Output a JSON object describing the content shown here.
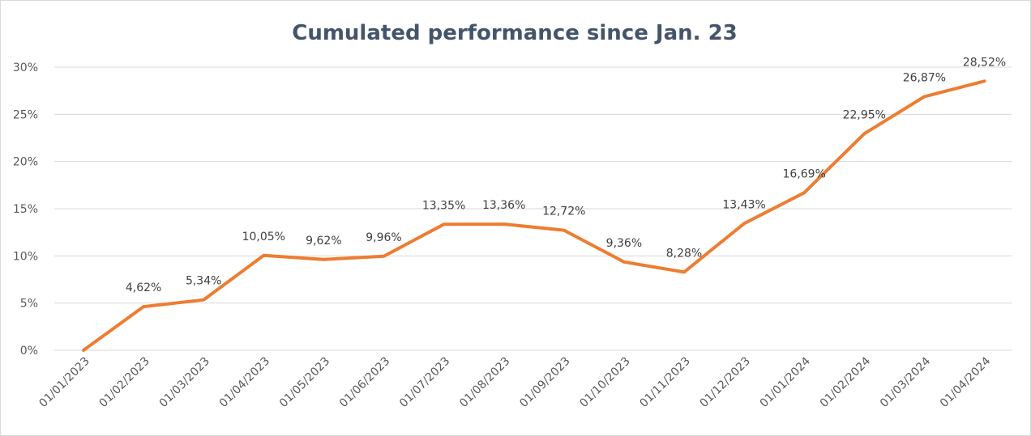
{
  "chart_data": {
    "type": "line",
    "title": "Cumulated performance since Jan. 23",
    "xlabel": "",
    "ylabel": "",
    "categories": [
      "01/01/2023",
      "01/02/2023",
      "01/03/2023",
      "01/04/2023",
      "01/05/2023",
      "01/06/2023",
      "01/07/2023",
      "01/08/2023",
      "01/09/2023",
      "01/10/2023",
      "01/11/2023",
      "01/12/2023",
      "01/01/2024",
      "01/02/2024",
      "01/03/2024",
      "01/04/2024"
    ],
    "values": [
      0,
      4.62,
      5.34,
      10.05,
      9.62,
      9.96,
      13.35,
      13.36,
      12.72,
      9.36,
      8.28,
      13.43,
      16.69,
      22.95,
      26.87,
      28.52
    ],
    "data_labels": [
      "",
      "4,62%",
      "5,34%",
      "10,05%",
      "9,62%",
      "9,96%",
      "13,35%",
      "13,36%",
      "12,72%",
      "9,36%",
      "8,28%",
      "13,43%",
      "16,69%",
      "22,95%",
      "26,87%",
      "28,52%"
    ],
    "y_ticks": [
      0,
      5,
      10,
      15,
      20,
      25,
      30
    ],
    "y_tick_labels": [
      "0%",
      "5%",
      "10%",
      "15%",
      "20%",
      "25%",
      "30%"
    ],
    "ylim": [
      0,
      30
    ],
    "grid": true,
    "legend": "none",
    "line_color": "#ed7d31"
  }
}
